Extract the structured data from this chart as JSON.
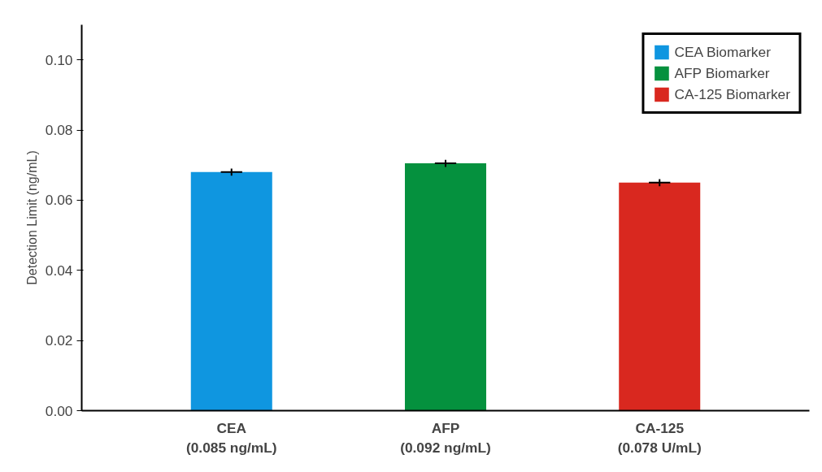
{
  "chart_data": {
    "type": "bar",
    "ylabel": "Detection Limit (ng/mL)",
    "categories": [
      "CEA\n(0.085 ng/mL)",
      "AFP\n(0.092 ng/mL)",
      "CA-125\n(0.078 U/mL)"
    ],
    "series": [
      {
        "name": "CEA Biomarker",
        "color": "#0f96e0",
        "values": [
          0.068,
          null,
          null
        ],
        "errors": [
          0.001,
          null,
          null
        ]
      },
      {
        "name": "AFP Biomarker",
        "color": "#05913e",
        "values": [
          null,
          0.0705,
          null
        ],
        "errors": [
          null,
          0.001,
          null
        ]
      },
      {
        "name": "CA-125 Biomarker",
        "color": "#d9281f",
        "values": [
          null,
          null,
          0.065
        ],
        "errors": [
          null,
          null,
          0.001
        ]
      }
    ],
    "ylim": [
      0,
      0.11
    ],
    "yticks": [
      {
        "value": 0,
        "label": "0.00"
      },
      {
        "value": 0.02,
        "label": "0.02"
      },
      {
        "value": 0.04,
        "label": "0.04"
      },
      {
        "value": 0.06,
        "label": "0.06"
      },
      {
        "value": 0.08,
        "label": "0.08"
      },
      {
        "value": 0.1,
        "label": "0.10"
      }
    ],
    "grid": false,
    "legend": "top right"
  }
}
